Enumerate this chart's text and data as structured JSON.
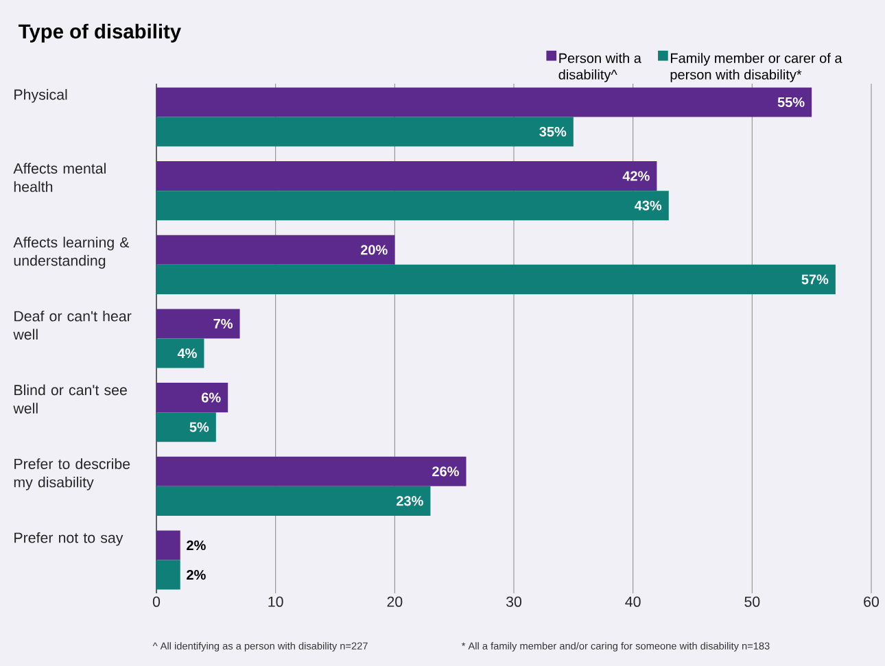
{
  "chart_data": {
    "type": "bar",
    "orientation": "horizontal",
    "title": "Type of disability",
    "categories": [
      "Physical",
      "Affects mental health",
      "Affects learning & understanding",
      "Deaf or can't hear well",
      "Blind or can't see well",
      "Prefer to describe my disability",
      "Prefer not to say"
    ],
    "series": [
      {
        "name": "Person with a disability^",
        "color": "#5b2a8c",
        "values": [
          55,
          42,
          20,
          7,
          6,
          26,
          2
        ],
        "value_labels": [
          "55%",
          "42%",
          "20%",
          "7%",
          "6%",
          "26%",
          "2%"
        ]
      },
      {
        "name": "Family member or carer of a person with disability*",
        "color": "#0f7f78",
        "values": [
          35,
          43,
          57,
          4,
          5,
          23,
          2
        ],
        "value_labels": [
          "35%",
          "43%",
          "57%",
          "4%",
          "5%",
          "23%",
          "2%"
        ]
      }
    ],
    "xlim": [
      0,
      60
    ],
    "xticks": [
      0,
      10,
      20,
      30,
      40,
      50,
      60
    ],
    "grid": "x",
    "legend": "top right",
    "annotations": [
      "^  All identifying as a person with disability n=227",
      "*  All a family member and/or caring for someone with disability n=183"
    ]
  }
}
